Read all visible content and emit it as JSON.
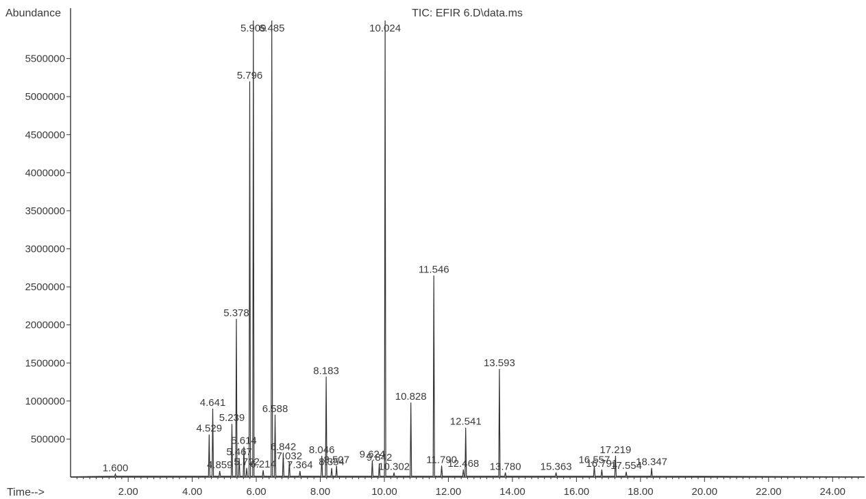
{
  "chart_data": {
    "type": "line",
    "title": "TIC: EFIR 6.D\\data.ms",
    "ylabel": "Abundance",
    "xlabel": "Time-->",
    "xlim": [
      0.2,
      25.0
    ],
    "ylim": [
      0,
      6000000
    ],
    "x_ticks": [
      2.0,
      4.0,
      6.0,
      8.0,
      10.0,
      12.0,
      14.0,
      16.0,
      18.0,
      20.0,
      22.0,
      24.0
    ],
    "x_tick_labels": [
      "2.00",
      "4.00",
      "6.00",
      "8.00",
      "10.00",
      "12.00",
      "14.00",
      "16.00",
      "18.00",
      "20.00",
      "22.00",
      "24.00"
    ],
    "y_ticks": [
      500000,
      1000000,
      1500000,
      2000000,
      2500000,
      3000000,
      3500000,
      4000000,
      4500000,
      5000000,
      5500000
    ],
    "y_tick_labels": [
      "500000",
      "1000000",
      "1500000",
      "2000000",
      "2500000",
      "3000000",
      "3500000",
      "4000000",
      "4500000",
      "5000000",
      "5500000"
    ],
    "grid": false,
    "peaks": [
      {
        "x": 1.6,
        "y": 40000,
        "label": "1.600"
      },
      {
        "x": 4.529,
        "y": 560000,
        "label": "4.529"
      },
      {
        "x": 4.641,
        "y": 900000,
        "label": "4.641"
      },
      {
        "x": 4.859,
        "y": 80000,
        "label": "4.859"
      },
      {
        "x": 5.239,
        "y": 700000,
        "label": "5.239"
      },
      {
        "x": 5.378,
        "y": 2080000,
        "label": "5.378"
      },
      {
        "x": 5.467,
        "y": 250000,
        "label": "5.467"
      },
      {
        "x": 5.614,
        "y": 400000,
        "label": "5.614"
      },
      {
        "x": 5.702,
        "y": 120000,
        "label": "5.702"
      },
      {
        "x": 5.796,
        "y": 5200000,
        "label": "5.796"
      },
      {
        "x": 5.909,
        "y": 6000000,
        "label": "5.909"
      },
      {
        "x": 6.214,
        "y": 90000,
        "label": "6.214"
      },
      {
        "x": 6.485,
        "y": 6000000,
        "label": "6.485"
      },
      {
        "x": 6.588,
        "y": 820000,
        "label": "6.588"
      },
      {
        "x": 6.842,
        "y": 320000,
        "label": "6.842"
      },
      {
        "x": 7.032,
        "y": 200000,
        "label": "7.032"
      },
      {
        "x": 7.364,
        "y": 80000,
        "label": "7.364"
      },
      {
        "x": 8.046,
        "y": 280000,
        "label": "8.046"
      },
      {
        "x": 8.183,
        "y": 1320000,
        "label": "8.183"
      },
      {
        "x": 8.354,
        "y": 120000,
        "label": "8.354"
      },
      {
        "x": 8.507,
        "y": 150000,
        "label": "8.507"
      },
      {
        "x": 9.624,
        "y": 220000,
        "label": "9.624"
      },
      {
        "x": 9.842,
        "y": 180000,
        "label": "9.842"
      },
      {
        "x": 10.024,
        "y": 6000000,
        "label": "10.024"
      },
      {
        "x": 10.302,
        "y": 60000,
        "label": "10.302"
      },
      {
        "x": 10.828,
        "y": 980000,
        "label": "10.828"
      },
      {
        "x": 11.546,
        "y": 2650000,
        "label": "11.546"
      },
      {
        "x": 11.79,
        "y": 150000,
        "label": "11.790"
      },
      {
        "x": 12.468,
        "y": 100000,
        "label": "12.468"
      },
      {
        "x": 12.541,
        "y": 650000,
        "label": "12.541"
      },
      {
        "x": 13.593,
        "y": 1420000,
        "label": "13.593"
      },
      {
        "x": 13.78,
        "y": 60000,
        "label": "13.780"
      },
      {
        "x": 15.363,
        "y": 60000,
        "label": "15.363"
      },
      {
        "x": 16.557,
        "y": 150000,
        "label": "16.557"
      },
      {
        "x": 16.791,
        "y": 100000,
        "label": "16.791"
      },
      {
        "x": 17.219,
        "y": 280000,
        "label": "17.219"
      },
      {
        "x": 17.554,
        "y": 70000,
        "label": "17.554"
      },
      {
        "x": 18.347,
        "y": 120000,
        "label": "18.347"
      }
    ]
  }
}
